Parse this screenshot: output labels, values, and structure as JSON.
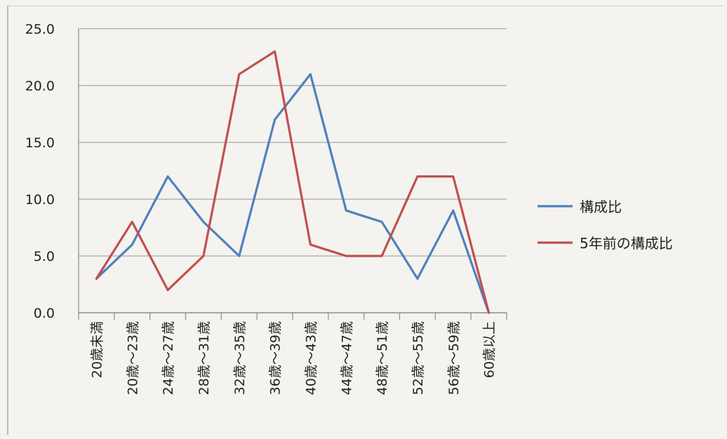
{
  "chart_data": {
    "type": "line",
    "categories": [
      "20歳未満",
      "20歳～23歳",
      "24歳～27歳",
      "28歳～31歳",
      "32歳～35歳",
      "36歳～39歳",
      "40歳～43歳",
      "44歳～47歳",
      "48歳～51歳",
      "52歳～55歳",
      "56歳～59歳",
      "60歳以上"
    ],
    "series": [
      {
        "name": "構成比",
        "color": "#4f81bd",
        "values": [
          3,
          6,
          12,
          8,
          5,
          17,
          21,
          9,
          8,
          3,
          9,
          0
        ]
      },
      {
        "name": "5年前の構成比",
        "color": "#c0504d",
        "values": [
          3,
          8,
          2,
          5,
          21,
          23,
          6,
          5,
          5,
          12,
          12,
          0
        ]
      }
    ],
    "ylim": [
      0,
      25
    ],
    "yticks": [
      "0.0",
      "5.0",
      "10.0",
      "15.0",
      "20.0",
      "25.0"
    ],
    "grid": true,
    "legend_position": "right"
  }
}
